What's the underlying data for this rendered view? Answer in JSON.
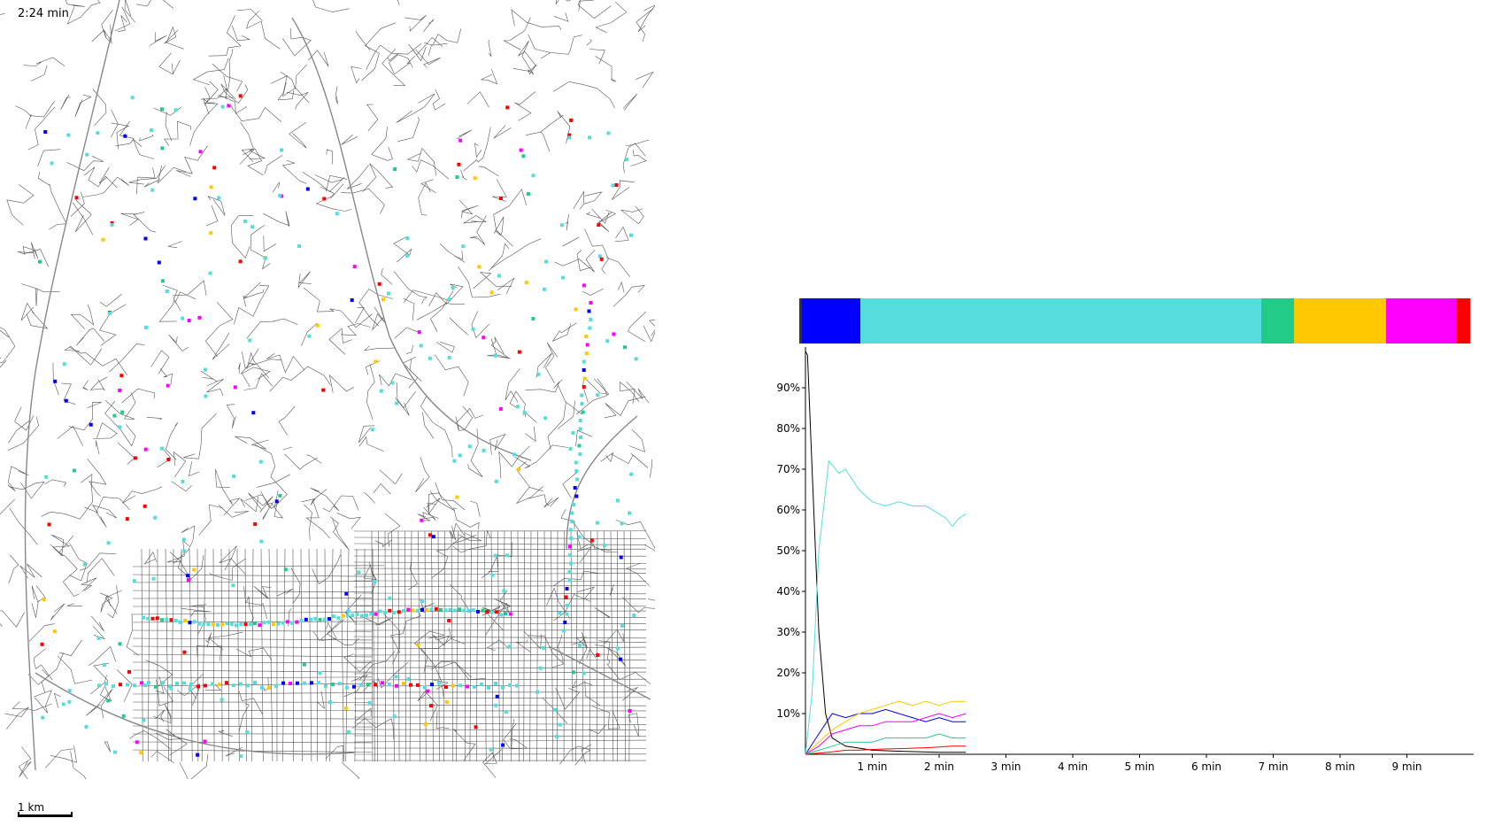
{
  "map": {
    "time_label": "2:24 min",
    "scale_label": "1 km",
    "status_colors": {
      "black": "#000000",
      "blue": "#0000ff",
      "cyan": "#55dddd",
      "green": "#22cc88",
      "yellow": "#ffc800",
      "magenta": "#ff00ff",
      "red": "#ff0000"
    }
  },
  "distribution_bar": [
    {
      "name": "black",
      "color": "#333333",
      "fraction": 0.004
    },
    {
      "name": "blue",
      "color": "#0000ff",
      "fraction": 0.087
    },
    {
      "name": "cyan",
      "color": "#55dddd",
      "fraction": 0.598
    },
    {
      "name": "green",
      "color": "#22cc88",
      "fraction": 0.048
    },
    {
      "name": "yellow",
      "color": "#ffc800",
      "fraction": 0.138
    },
    {
      "name": "magenta",
      "color": "#ff00ff",
      "fraction": 0.105
    },
    {
      "name": "red",
      "color": "#ff0000",
      "fraction": 0.02
    }
  ],
  "chart_data": {
    "type": "line",
    "title": "",
    "xlabel": "",
    "ylabel": "",
    "x_ticks": [
      "1 min",
      "2 min",
      "3 min",
      "4 min",
      "5 min",
      "6 min",
      "7 min",
      "8 min",
      "9 min"
    ],
    "y_ticks": [
      "10%",
      "20%",
      "30%",
      "40%",
      "50%",
      "60%",
      "70%",
      "80%",
      "90%"
    ],
    "xlim": [
      0,
      10
    ],
    "ylim": [
      0,
      100
    ],
    "series": [
      {
        "color": "#000000",
        "x": [
          0,
          0.03,
          0.1,
          0.2,
          0.3,
          0.4,
          0.6,
          1,
          1.5,
          2,
          2.4
        ],
        "y": [
          99,
          98,
          70,
          30,
          10,
          4,
          2,
          1,
          0.7,
          0.5,
          0.5
        ]
      },
      {
        "color": "#55dddd",
        "x": [
          0,
          0.1,
          0.2,
          0.35,
          0.5,
          0.6,
          0.8,
          1.0,
          1.2,
          1.4,
          1.6,
          1.8,
          2.0,
          2.1,
          2.2,
          2.3,
          2.4
        ],
        "y": [
          0,
          15,
          50,
          72,
          69,
          70,
          65,
          62,
          61,
          62,
          61,
          61,
          59,
          58,
          56,
          58,
          59
        ]
      },
      {
        "color": "#0000ff",
        "x": [
          0,
          0.2,
          0.4,
          0.6,
          0.8,
          1.0,
          1.2,
          1.4,
          1.6,
          1.8,
          2.0,
          2.2,
          2.4
        ],
        "y": [
          0,
          5,
          10,
          9,
          10,
          10,
          11,
          10,
          9,
          8,
          9,
          8,
          8
        ]
      },
      {
        "color": "#ffc800",
        "x": [
          0,
          0.2,
          0.4,
          0.6,
          0.8,
          1.0,
          1.2,
          1.4,
          1.6,
          1.8,
          2.0,
          2.2,
          2.4
        ],
        "y": [
          0,
          3,
          6,
          8,
          10,
          11,
          12,
          13,
          12,
          13,
          12,
          13,
          13
        ]
      },
      {
        "color": "#ff00ff",
        "x": [
          0,
          0.2,
          0.4,
          0.6,
          0.8,
          1.0,
          1.2,
          1.4,
          1.6,
          1.8,
          2.0,
          2.2,
          2.4
        ],
        "y": [
          0,
          2,
          5,
          6,
          7,
          7,
          8,
          8,
          8,
          9,
          10,
          9,
          10
        ]
      },
      {
        "color": "#22cc88",
        "x": [
          0,
          0.2,
          0.4,
          0.6,
          0.8,
          1.0,
          1.2,
          1.4,
          1.6,
          1.8,
          2.0,
          2.2,
          2.4
        ],
        "y": [
          0,
          1,
          2,
          3,
          3,
          3,
          4,
          4,
          4,
          4,
          5,
          4,
          4
        ]
      },
      {
        "color": "#ff0000",
        "x": [
          0,
          0.2,
          0.4,
          0.6,
          0.8,
          1.0,
          1.2,
          1.4,
          1.6,
          1.8,
          2.0,
          2.2,
          2.4
        ],
        "y": [
          0,
          0.3,
          0.6,
          1,
          1,
          1.2,
          1.3,
          1.4,
          1.5,
          1.6,
          1.8,
          2,
          2
        ]
      }
    ]
  }
}
